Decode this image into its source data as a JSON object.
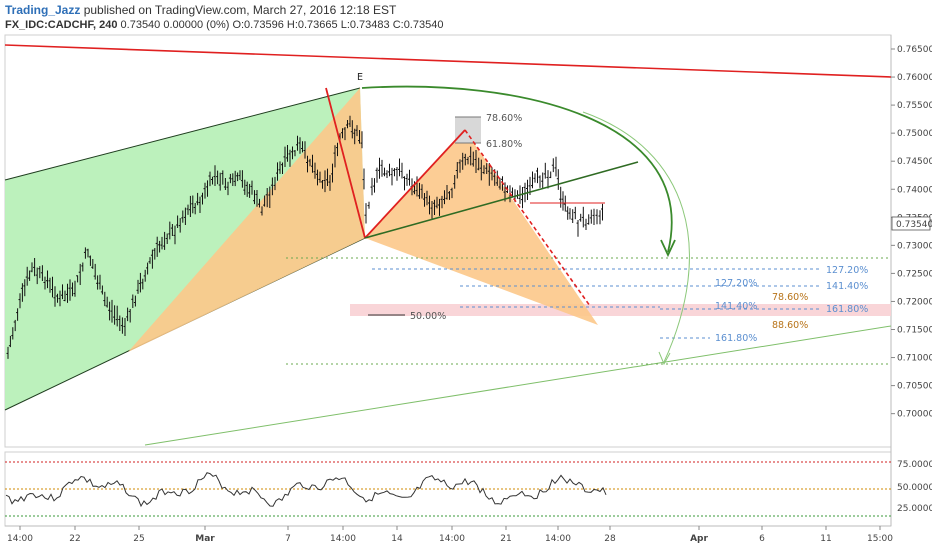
{
  "header": {
    "author": "Trading_Jazz",
    "published_text": "published on TradingView.com, March 27, 2016 12:18 EST",
    "symbol": "FX_IDC:CADCHF, 240",
    "ohlc_text": "0.73540 0.00000 (0%) O:0.73596 H:0.73665 L:0.73483 C:0.73540"
  },
  "chart_data": {
    "type": "line",
    "symbol": "FX_IDC:CADCHF",
    "interval": "240",
    "price_axis": {
      "range": [
        0.695,
        0.7675
      ],
      "ticks": [
        "0.76500",
        "0.76000",
        "0.75500",
        "0.75000",
        "0.74500",
        "0.74000",
        "0.73500",
        "0.73000",
        "0.72500",
        "0.72000",
        "0.71500",
        "0.71000",
        "0.70500",
        "0.70000"
      ]
    },
    "current_price": "0.73540",
    "time_axis": {
      "ticks": [
        "14:00",
        "22",
        "25",
        "Mar",
        "7",
        "14:00",
        "14",
        "14:00",
        "21",
        "14:00",
        "28",
        "Apr",
        "6",
        "11",
        "15:00"
      ],
      "bold": [
        "Mar",
        "Apr"
      ]
    },
    "point_label": "E",
    "fib_labels": [
      {
        "text": "78.60%",
        "color": "#555555"
      },
      {
        "text": "61.80%",
        "color": "#555555"
      },
      {
        "text": "127.20%",
        "color": "#5b8fd0"
      },
      {
        "text": "141.40%",
        "color": "#5b8fd0"
      },
      {
        "text": "127.20%",
        "color": "#5b8fd0"
      },
      {
        "text": "78.60%",
        "color": "#b8741a"
      },
      {
        "text": "141.40%",
        "color": "#5b8fd0"
      },
      {
        "text": "161.80%",
        "color": "#5b8fd0"
      },
      {
        "text": "50.00%",
        "color": "#555555"
      },
      {
        "text": "88.60%",
        "color": "#b8741a"
      },
      {
        "text": "161.80%",
        "color": "#5b8fd0"
      }
    ],
    "rsi_axis": {
      "ticks": [
        "75.0000",
        "50.0000",
        "25.0000"
      ],
      "levels": [
        80,
        50,
        20
      ]
    },
    "colors": {
      "red_line": "#e02020",
      "green_channel": "#b8f0b8",
      "orange_pattern": "#fcc88a",
      "dark_green": "#3a7d2c",
      "pink_zone": "#f8d0d4",
      "fib_blue": "#5b8fd0",
      "fib_orange": "#b8741a",
      "candle": "#111111"
    }
  }
}
